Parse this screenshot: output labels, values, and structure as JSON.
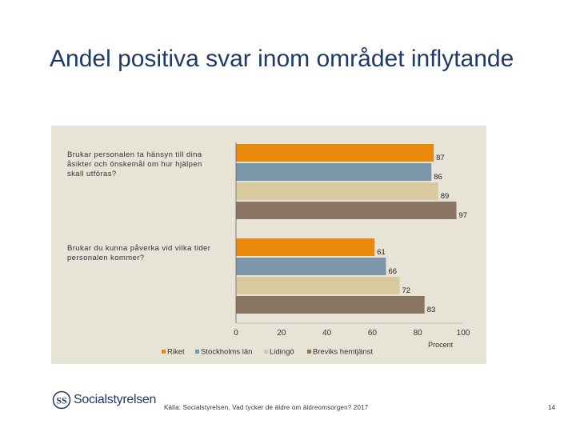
{
  "slide": {
    "title": "Andel positiva svar inom området inflytande",
    "source": "Källa: Socialstyrelsen, Vad tycker de äldre om äldreomsorgen? 2017",
    "page_number": "14",
    "logo_text": "Socialstyrelsen",
    "logo_mark": "SS"
  },
  "colors": {
    "Riket": "#e8890c",
    "Stockholms län": "#7b96a8",
    "Lidingö": "#d8c9a0",
    "Breviks hemtjänst": "#8a7662",
    "panel": "#e8e3d7",
    "title": "#1f3a66"
  },
  "chart_data": {
    "type": "bar",
    "orientation": "horizontal",
    "title": "",
    "xlabel": "Procent",
    "ylabel": "",
    "xlim": [
      0,
      100
    ],
    "xticks": [
      0,
      20,
      40,
      60,
      80,
      100
    ],
    "categories": [
      "Brukar personalen ta hänsyn till dina åsikter och önskemål om hur hjälpen skall utföras?",
      "Brukar du kunna påverka vid vilka tider personalen kommer?"
    ],
    "series": [
      {
        "name": "Riket",
        "values": [
          87,
          61
        ]
      },
      {
        "name": "Stockholms län",
        "values": [
          86,
          66
        ]
      },
      {
        "name": "Lidingö",
        "values": [
          89,
          72
        ]
      },
      {
        "name": "Breviks hemtjänst",
        "values": [
          97,
          83
        ]
      }
    ],
    "legend": "bottom"
  }
}
